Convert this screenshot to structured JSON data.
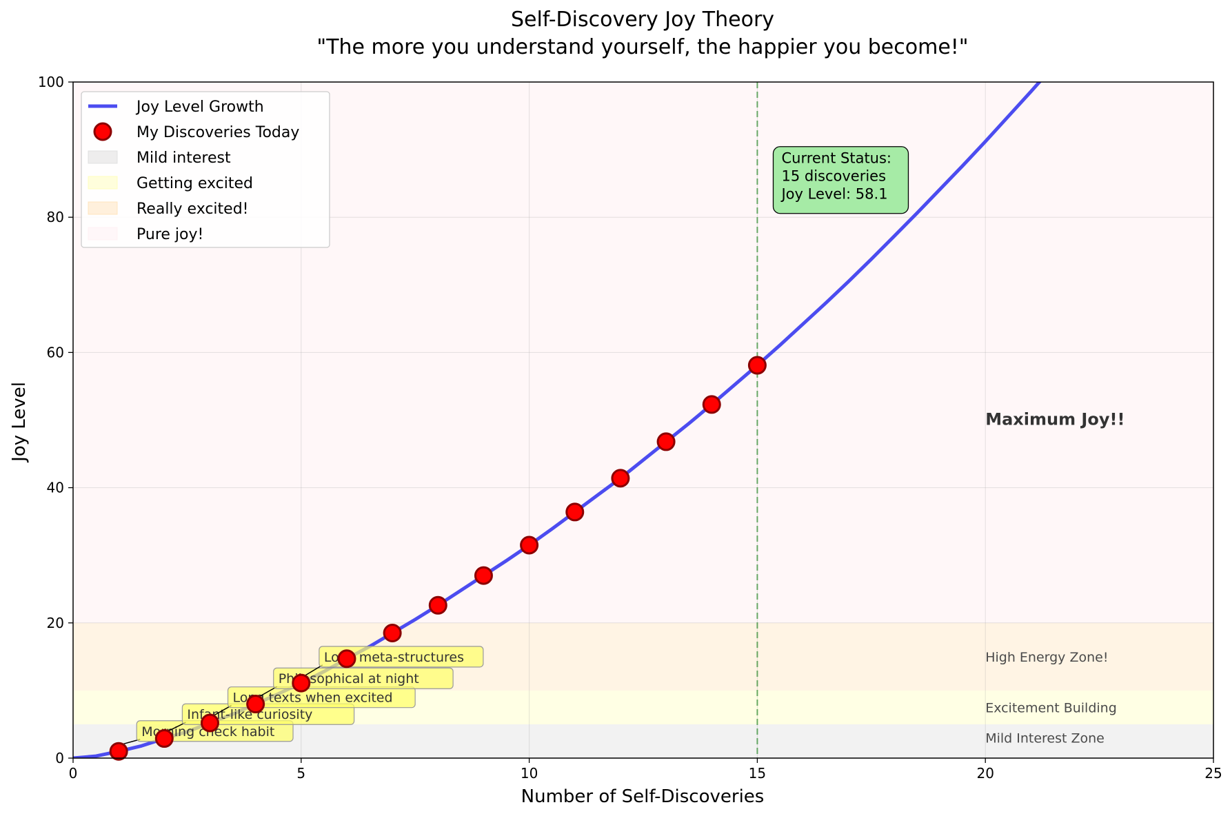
{
  "chart_data": {
    "type": "line",
    "title": "Self-Discovery Joy Theory",
    "subtitle": "\"The more you understand yourself, the happier you become!\"",
    "xlabel": "Number of Self-Discoveries",
    "ylabel": "Joy Level",
    "xlim": [
      0,
      25
    ],
    "ylim": [
      0,
      100
    ],
    "xticks": [
      0,
      5,
      10,
      15,
      20,
      25
    ],
    "yticks": [
      0,
      20,
      40,
      60,
      80,
      100
    ],
    "grid": true,
    "legend_position": "upper-left",
    "curve": {
      "name": "Joy Level Growth",
      "color": "#4c4cf0",
      "x": [
        0,
        0.5,
        1,
        1.5,
        2,
        2.5,
        3,
        3.5,
        4,
        4.5,
        5,
        5.5,
        6,
        6.5,
        7,
        7.5,
        8,
        8.5,
        9,
        9.5,
        10,
        10.5,
        11,
        11.5,
        12,
        12.5,
        13,
        13.5,
        14,
        14.5,
        15,
        15.5,
        16,
        16.5,
        17,
        17.5,
        18,
        18.5,
        19,
        19.5,
        20,
        20.5,
        21,
        21.5,
        22
      ],
      "y": [
        0,
        0.3,
        1.0,
        1.8,
        2.9,
        3.9,
        5.2,
        6.5,
        8.0,
        9.5,
        11.1,
        12.8,
        14.7,
        16.5,
        18.5,
        20.5,
        22.6,
        24.8,
        27.0,
        29.2,
        31.5,
        33.9,
        36.4,
        38.9,
        41.4,
        44.1,
        46.8,
        49.5,
        52.3,
        55.2,
        58.1,
        61.1,
        64.2,
        67.3,
        70.5,
        73.8,
        77.2,
        80.6,
        84.1,
        87.6,
        91.2,
        94.9,
        98.6,
        102.4,
        106.2
      ]
    },
    "points": {
      "name": "My Discoveries Today",
      "color": "#ff0000",
      "edge_color": "#8b0000",
      "x": [
        1,
        2,
        3,
        4,
        5,
        6,
        7,
        8,
        9,
        10,
        11,
        12,
        13,
        14,
        15
      ],
      "y": [
        1.0,
        2.9,
        5.2,
        8.0,
        11.1,
        14.7,
        18.5,
        22.6,
        27.0,
        31.5,
        36.4,
        41.4,
        46.8,
        52.3,
        58.1
      ]
    },
    "zones": [
      {
        "name": "Mild interest",
        "y0": 0,
        "y1": 5,
        "color": "#d9d9d9",
        "label": "Mild Interest Zone",
        "label_y": 3
      },
      {
        "name": "Getting excited",
        "y0": 5,
        "y1": 10,
        "color": "#ffffb3",
        "label": "Excitement Building",
        "label_y": 7.5
      },
      {
        "name": "Really excited!",
        "y0": 10,
        "y1": 20,
        "color": "#ffe0b3",
        "label": "High Energy Zone!",
        "label_y": 15
      },
      {
        "name": "Pure joy!",
        "y0": 20,
        "y1": 100,
        "color": "#fff0f3",
        "label": "Maximum Joy!!",
        "label_y": 50
      }
    ],
    "zone_label_x": 20,
    "vline": {
      "x": 15,
      "color": "#2e8b2e"
    },
    "annotations": [
      {
        "text": "Morning check habit",
        "x": 1,
        "y": 1.0,
        "tx": 1.5,
        "ty": 4.0
      },
      {
        "text": "Infant-like curiosity",
        "x": 2,
        "y": 2.9,
        "tx": 2.5,
        "ty": 6.5
      },
      {
        "text": "Long texts when excited",
        "x": 3,
        "y": 5.2,
        "tx": 3.5,
        "ty": 9.0
      },
      {
        "text": "Philosophical at night",
        "x": 4,
        "y": 8.0,
        "tx": 4.5,
        "ty": 11.8
      },
      {
        "text": "Love meta-structures",
        "x": 5,
        "y": 11.1,
        "tx": 5.5,
        "ty": 15.0
      }
    ],
    "status_box": {
      "lines": [
        "Current Status:",
        "15 discoveries",
        "Joy Level: 58.1"
      ],
      "x": 15.5,
      "y": 88,
      "color": "#a6eba6"
    }
  }
}
